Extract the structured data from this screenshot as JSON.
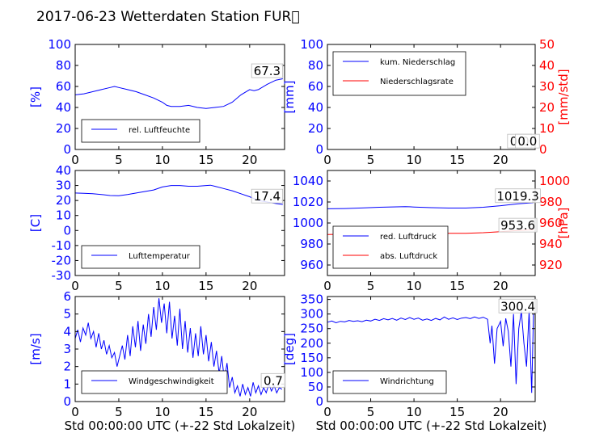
{
  "title": "2017-06-23 Wetterdaten Station FUR\u0000",
  "colors": {
    "primary": "#0000ff",
    "secondary": "#ff0000",
    "text": "#000000"
  },
  "chart_data": [
    {
      "type": "line",
      "ylabel": "[%]",
      "ylim": [
        0,
        100
      ],
      "yticks": [
        0,
        20,
        40,
        60,
        80,
        100
      ],
      "xlim": [
        0,
        24
      ],
      "xticks": [
        0,
        5,
        10,
        15,
        20
      ],
      "xlabel": "",
      "legend": {
        "position": "bottom-left"
      },
      "annotations": [
        {
          "text": "67.3",
          "x": 22.0,
          "y": 71.5,
          "axis": "left"
        }
      ],
      "series": [
        {
          "name": "rel. Luftfeuchte",
          "color": "#0000ff",
          "axis": "left",
          "x": [
            0,
            1,
            2,
            3,
            4,
            4.5,
            5,
            6,
            7,
            8,
            9,
            10,
            10.5,
            11,
            12,
            13,
            14,
            15,
            16,
            17,
            18,
            19,
            20,
            20.5,
            21,
            22,
            23,
            23.8
          ],
          "y": [
            52,
            53,
            55,
            57,
            59,
            60,
            59,
            57,
            55,
            52,
            49,
            45,
            42,
            41,
            41,
            42,
            40,
            39,
            40,
            41,
            45,
            52,
            57,
            56,
            57,
            62,
            66,
            67.3
          ]
        }
      ]
    },
    {
      "type": "line",
      "ylabel": "[mm]",
      "ylim": [
        0,
        100
      ],
      "yticks": [
        0,
        20,
        40,
        60,
        80,
        100
      ],
      "ylabel_right": "[mm/std]",
      "ylim_right": [
        0,
        50
      ],
      "yticks_right": [
        0,
        10,
        20,
        30,
        40,
        50
      ],
      "xlim": [
        0,
        24
      ],
      "xticks": [
        0,
        5,
        10,
        15,
        20
      ],
      "xlabel": "",
      "legend": {
        "position": "top-left"
      },
      "annotations": [
        {
          "text": "0.0",
          "x": 22.2,
          "y": 4.5,
          "axis": "left"
        },
        {
          "text": "0.0",
          "x": 23.1,
          "y": 4.5,
          "axis": "left"
        }
      ],
      "series": [
        {
          "name": "kum. Niederschlag",
          "color": "#0000ff",
          "axis": "left",
          "x": [
            0,
            24
          ],
          "y": [
            0,
            0
          ]
        },
        {
          "name": "Niederschlagsrate",
          "color": "#ff0000",
          "axis": "right",
          "x": [
            0,
            24
          ],
          "y": [
            0,
            0
          ]
        }
      ]
    },
    {
      "type": "line",
      "ylabel": "[C]",
      "ylim": [
        -30,
        40
      ],
      "yticks": [
        -30,
        -20,
        -10,
        0,
        10,
        20,
        30,
        40
      ],
      "xlim": [
        0,
        24
      ],
      "xticks": [
        0,
        5,
        10,
        15,
        20
      ],
      "xlabel": "",
      "legend": {
        "position": "bottom-left"
      },
      "annotations": [
        {
          "text": "17.4",
          "x": 22.0,
          "y": 20.5,
          "axis": "left"
        }
      ],
      "series": [
        {
          "name": "Lufttemperatur",
          "color": "#0000ff",
          "axis": "left",
          "x": [
            0,
            1,
            2,
            3,
            4,
            5,
            6,
            7,
            8,
            9,
            10,
            10.5,
            11,
            12,
            13,
            14,
            15,
            15.5,
            16,
            17,
            18,
            19,
            20,
            21,
            22,
            23,
            23.8
          ],
          "y": [
            25,
            24.8,
            24.5,
            24,
            23.3,
            23.2,
            24,
            25,
            26,
            27,
            29,
            29.5,
            30,
            30,
            29.5,
            29.5,
            30,
            30.2,
            29.5,
            28,
            26.5,
            24.5,
            22.5,
            20,
            19,
            18,
            17.4
          ]
        }
      ]
    },
    {
      "type": "line",
      "ylabel": "",
      "ylim": [
        950,
        1050
      ],
      "yticks": [
        960,
        980,
        1000,
        1020,
        1040
      ],
      "ylabel_right": "[hPa]",
      "ylim_right": [
        910,
        1010
      ],
      "yticks_right": [
        920,
        940,
        960,
        980,
        1000
      ],
      "xlim": [
        0,
        24
      ],
      "xticks": [
        0,
        5,
        10,
        15,
        20
      ],
      "xlabel": "",
      "legend": {
        "position": "bottom-left"
      },
      "annotations": [
        {
          "text": "1019.3",
          "x": 22.0,
          "y": 1022.5,
          "axis": "left"
        },
        {
          "text": "953.6",
          "x": 22.0,
          "y": 954.5,
          "axis": "right"
        }
      ],
      "series": [
        {
          "name": "red. Luftdruck",
          "color": "#0000ff",
          "axis": "left",
          "x": [
            0,
            2,
            4,
            6,
            8,
            9,
            10,
            12,
            14,
            16,
            18,
            20,
            22,
            23.8
          ],
          "y": [
            1013.5,
            1013.8,
            1014.3,
            1015,
            1015.4,
            1015.6,
            1015.2,
            1014.6,
            1014.2,
            1014.2,
            1015,
            1016.5,
            1018.3,
            1019.3
          ]
        },
        {
          "name": "abs. Luftdruck",
          "color": "#ff0000",
          "axis": "right",
          "x": [
            0,
            2,
            4,
            6,
            8,
            9,
            10,
            12,
            14,
            16,
            18,
            20,
            22,
            23.8
          ],
          "y": [
            949,
            949.3,
            949.8,
            950.5,
            951,
            951.2,
            950.9,
            950.5,
            950.2,
            950.2,
            950.8,
            951.8,
            952.9,
            953.6
          ]
        }
      ]
    },
    {
      "type": "line",
      "ylabel": "[m/s]",
      "ylim": [
        0,
        6
      ],
      "yticks": [
        0,
        1,
        2,
        3,
        4,
        5,
        6
      ],
      "xlim": [
        0,
        24
      ],
      "xticks": [
        0,
        5,
        10,
        15,
        20
      ],
      "xlabel": "Std 00:00:00 UTC (+-22 Std Lokalzeit)",
      "legend": {
        "position": "bottom-left"
      },
      "annotations": [
        {
          "text": "0.7",
          "x": 22.7,
          "y": 1.0,
          "axis": "left"
        }
      ],
      "series": [
        {
          "name": "Windgeschwindigkeit",
          "color": "#0000ff",
          "axis": "left",
          "x": [
            0,
            0.3,
            0.6,
            0.9,
            1.2,
            1.5,
            1.8,
            2.1,
            2.4,
            2.7,
            3.0,
            3.3,
            3.6,
            3.9,
            4.2,
            4.5,
            4.8,
            5.1,
            5.4,
            5.7,
            6.0,
            6.3,
            6.6,
            6.9,
            7.2,
            7.5,
            7.8,
            8.1,
            8.4,
            8.7,
            9.0,
            9.3,
            9.6,
            9.9,
            10.2,
            10.5,
            10.8,
            11.1,
            11.4,
            11.7,
            12.0,
            12.3,
            12.6,
            12.9,
            13.2,
            13.5,
            13.8,
            14.1,
            14.4,
            14.7,
            15.0,
            15.3,
            15.6,
            15.9,
            16.2,
            16.5,
            16.8,
            17.1,
            17.4,
            17.7,
            18.0,
            18.3,
            18.6,
            18.9,
            19.2,
            19.5,
            19.8,
            20.1,
            20.4,
            20.7,
            21.0,
            21.3,
            21.6,
            21.9,
            22.2,
            22.5,
            22.8,
            23.1,
            23.4,
            23.7
          ],
          "y": [
            3.6,
            4.1,
            3.4,
            4.2,
            3.8,
            4.5,
            3.6,
            4.0,
            3.1,
            3.9,
            3.0,
            3.5,
            2.7,
            3.2,
            2.5,
            2.8,
            2.0,
            2.6,
            3.2,
            2.4,
            3.8,
            2.6,
            4.3,
            3.1,
            4.6,
            2.9,
            4.4,
            3.3,
            5.0,
            3.7,
            5.4,
            4.1,
            5.9,
            4.5,
            5.6,
            3.9,
            5.7,
            3.6,
            4.9,
            3.2,
            5.3,
            3.0,
            4.6,
            2.8,
            4.2,
            2.5,
            3.9,
            2.6,
            4.3,
            2.7,
            3.8,
            2.3,
            3.4,
            2.0,
            2.9,
            1.6,
            2.6,
            1.2,
            2.2,
            0.8,
            1.4,
            0.5,
            0.9,
            0.3,
            1.0,
            0.4,
            0.8,
            0.3,
            1.1,
            0.5,
            0.9,
            0.4,
            0.8,
            0.5,
            1.0,
            0.6,
            0.9,
            0.5,
            0.8,
            0.7
          ]
        }
      ]
    },
    {
      "type": "line",
      "ylabel": "[deg]",
      "ylim": [
        0,
        360
      ],
      "yticks": [
        0,
        50,
        100,
        150,
        200,
        250,
        300,
        350
      ],
      "xlim": [
        0,
        24
      ],
      "xticks": [
        0,
        5,
        10,
        15,
        20
      ],
      "xlabel": "Std 00:00:00 UTC (+-22 Std Lokalzeit)",
      "legend": {
        "position": "bottom-left"
      },
      "annotations": [
        {
          "text": "300.4",
          "x": 22.0,
          "y": 315,
          "axis": "left"
        }
      ],
      "series": [
        {
          "name": "Windrichtung",
          "color": "#0000ff",
          "axis": "left",
          "x": [
            0,
            0.5,
            1,
            1.5,
            2,
            2.5,
            3,
            3.5,
            4,
            4.5,
            5,
            5.5,
            6,
            6.5,
            7,
            7.5,
            8,
            8.5,
            9,
            9.5,
            10,
            10.5,
            11,
            11.5,
            12,
            12.5,
            13,
            13.5,
            14,
            14.5,
            15,
            15.5,
            16,
            16.5,
            17,
            17.5,
            18,
            18.5,
            18.8,
            19.0,
            19.3,
            19.6,
            20.0,
            20.3,
            20.6,
            20.9,
            21.2,
            21.5,
            21.8,
            22.1,
            22.4,
            22.7,
            23.0,
            23.3,
            23.6,
            23.8
          ],
          "y": [
            272,
            276,
            270,
            275,
            273,
            278,
            275,
            277,
            274,
            279,
            276,
            282,
            278,
            284,
            280,
            285,
            279,
            286,
            281,
            288,
            282,
            286,
            279,
            283,
            278,
            285,
            280,
            290,
            282,
            287,
            281,
            286,
            288,
            284,
            290,
            285,
            289,
            282,
            200,
            260,
            130,
            250,
            275,
            190,
            285,
            240,
            120,
            300,
            60,
            250,
            310,
            200,
            120,
            310,
            30,
            300
          ]
        }
      ]
    }
  ]
}
